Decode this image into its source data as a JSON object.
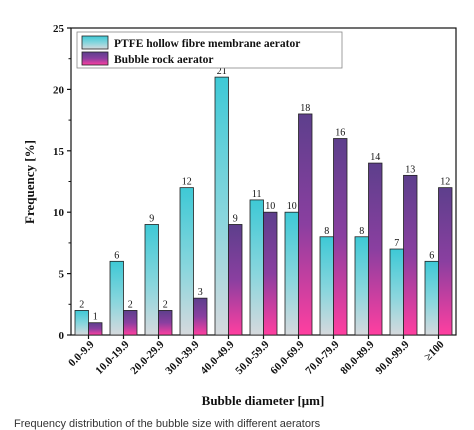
{
  "chart_data": {
    "type": "bar",
    "categories": [
      "0.0-9.9",
      "10.0-19.9",
      "20.0-29.9",
      "30.0-39.9",
      "40.0-49.9",
      "50.0-59.9",
      "60.0-69.9",
      "70.0-79.9",
      "80.0-89.9",
      "90.0-99.9",
      "≥100"
    ],
    "series": [
      {
        "name": "PTFE hollow fibre membrane aerator",
        "values": [
          2,
          6,
          9,
          12,
          21,
          11,
          10,
          8,
          8,
          7,
          6
        ],
        "color_top": "#3ec9d6",
        "color_bottom": "#d6d9dd"
      },
      {
        "name": "Bubble rock aerator",
        "values": [
          1,
          2,
          2,
          3,
          9,
          10,
          18,
          16,
          14,
          13,
          12
        ],
        "color_top": "#5d3f8c",
        "color_bottom": "#ff3fa0"
      }
    ],
    "xlabel": "Bubble diameter [μm]",
    "ylabel": "Frequency [%]",
    "ylim": [
      0,
      25
    ],
    "yticks": [
      0,
      5,
      10,
      15,
      20,
      25
    ],
    "legend_position": "top-left",
    "grid": false
  },
  "caption": "Frequency distribution of the bubble size with different aerators"
}
